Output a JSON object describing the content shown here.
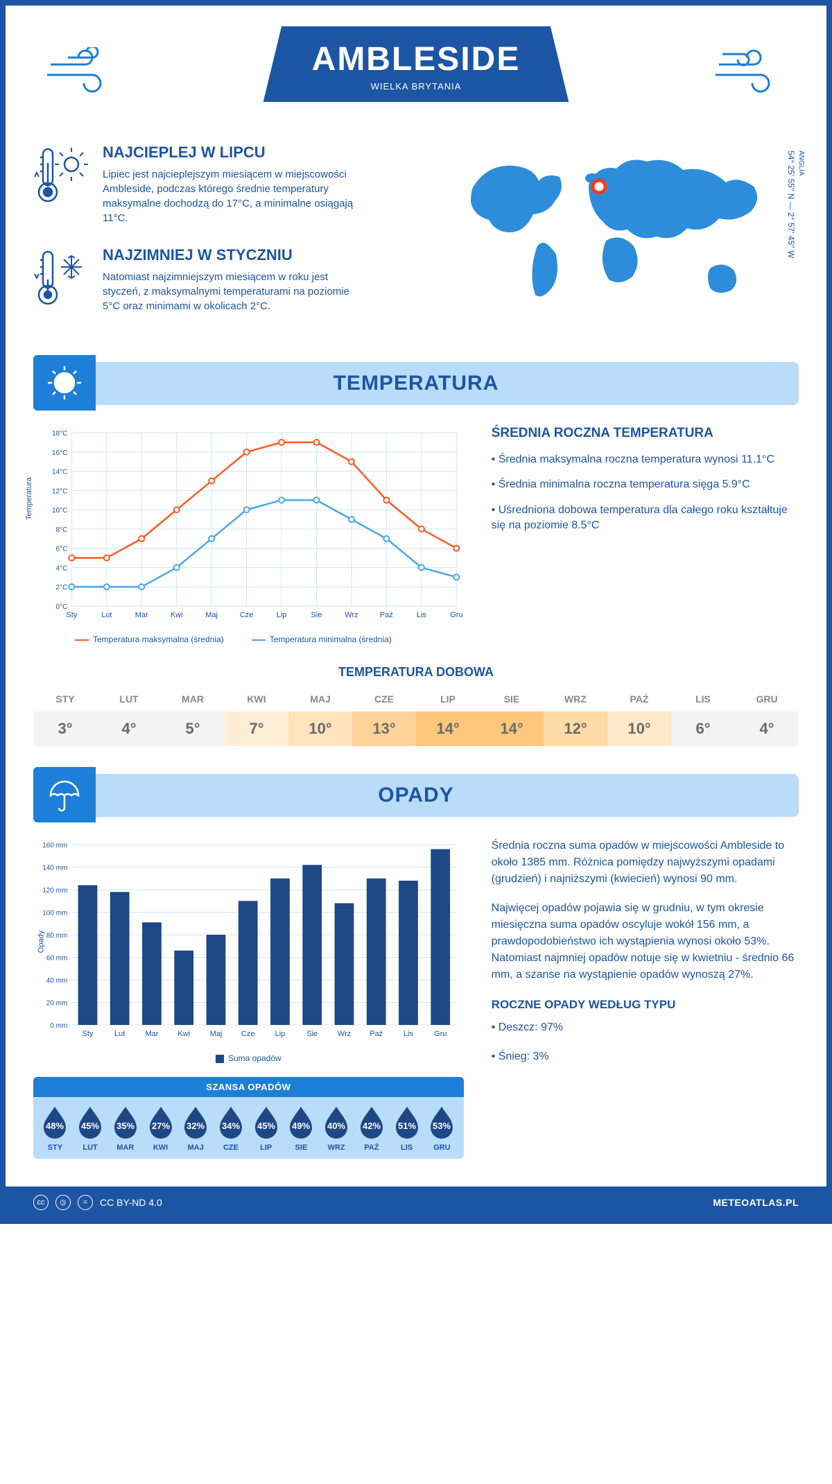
{
  "header": {
    "title": "AMBLESIDE",
    "country": "WIELKA BRYTANIA",
    "banner_bg": "#1c55a3",
    "banner_fg": "#ffffff"
  },
  "coords": {
    "lat": "54° 25' 55'' N — 2° 57' 45'' W",
    "region": "ANGLIA"
  },
  "warmest": {
    "title": "NAJCIEPLEJ W LIPCU",
    "text": "Lipiec jest najcieplejszym miesiącem w miejscowości Ambleside, podczas którego średnie temperatury maksymalne dochodzą do 17°C, a minimalne osiągają 11°C."
  },
  "coldest": {
    "title": "NAJZIMNIEJ W STYCZNIU",
    "text": "Natomiast najzimniejszym miesiącem w roku jest styczeń, z maksymalnymi temperaturami na poziomie 5°C oraz minimami w okolicach 2°C."
  },
  "temperature": {
    "section_title": "TEMPERATURA",
    "side_title": "ŚREDNIA ROCZNA TEMPERATURA",
    "bullets": [
      "• Średnia maksymalna roczna temperatura wynosi 11.1°C",
      "• Średnia minimalna roczna temperatura sięga 5.9°C",
      "• Uśredniona dobowa temperatura dla całego roku kształtuje się na poziomie 8.5°C"
    ],
    "chart": {
      "type": "line",
      "months": [
        "Sty",
        "Lut",
        "Mar",
        "Kwi",
        "Maj",
        "Cze",
        "Lip",
        "Sie",
        "Wrz",
        "Paź",
        "Lis",
        "Gru"
      ],
      "max_series": [
        5,
        5,
        7,
        10,
        13,
        16,
        17,
        17,
        15,
        11,
        8,
        6
      ],
      "min_series": [
        2,
        2,
        2,
        4,
        7,
        10,
        11,
        11,
        9,
        7,
        4,
        3
      ],
      "max_color": "#ff5a1f",
      "min_color": "#4aa8e8",
      "ylim": [
        0,
        18
      ],
      "ytick_step": 2,
      "yformat": "°C",
      "grid_color": "#cfe6f7",
      "legend_max": "Temperatura maksymalna (średnia)",
      "legend_min": "Temperatura minimalna (średnia)",
      "ylabel": "Temperatura"
    },
    "daily": {
      "title": "TEMPERATURA DOBOWA",
      "months": [
        "STY",
        "LUT",
        "MAR",
        "KWI",
        "MAJ",
        "CZE",
        "LIP",
        "SIE",
        "WRZ",
        "PAŹ",
        "LIS",
        "GRU"
      ],
      "values": [
        "3°",
        "4°",
        "5°",
        "7°",
        "10°",
        "13°",
        "14°",
        "14°",
        "12°",
        "10°",
        "6°",
        "4°"
      ],
      "bg_colors": [
        "#f4f4f4",
        "#f4f4f4",
        "#f4f4f4",
        "#ffedd7",
        "#ffe3bd",
        "#ffd39a",
        "#ffc77b",
        "#ffc77b",
        "#ffdba8",
        "#ffe9c9",
        "#f4f4f4",
        "#f4f4f4"
      ]
    }
  },
  "precip": {
    "section_title": "OPADY",
    "para1": "Średnia roczna suma opadów w miejscowości Ambleside to około 1385 mm. Różnica pomiędzy najwyższymi opadami (grudzień) i najniższymi (kwiecień) wynosi 90 mm.",
    "para2": "Najwięcej opadów pojawia się w grudniu, w tym okresie miesięczna suma opadów oscyluje wokół 156 mm, a prawdopodobieństwo ich wystąpienia wynosi około 53%. Natomiast najmniej opadów notuje się w kwietniu - średnio 66 mm, a szanse na wystąpienie opadów wynoszą 27%.",
    "type_title": "ROCZNE OPADY WEDŁUG TYPU",
    "type_bullets": [
      "• Deszcz: 97%",
      "• Śnieg: 3%"
    ],
    "chart": {
      "type": "bar",
      "months": [
        "Sty",
        "Lut",
        "Mar",
        "Kwi",
        "Maj",
        "Cze",
        "Lip",
        "Sie",
        "Wrz",
        "Paź",
        "Lis",
        "Gru"
      ],
      "values": [
        124,
        118,
        91,
        66,
        80,
        110,
        130,
        142,
        108,
        130,
        128,
        156
      ],
      "bar_color": "#1e4785",
      "ylim": [
        0,
        160
      ],
      "ytick_step": 20,
      "yformat": " mm",
      "grid_color": "#cfe6f7",
      "ylabel": "Opady",
      "legend": "Suma opadów"
    },
    "chance": {
      "title": "SZANSA OPADÓW",
      "months": [
        "STY",
        "LUT",
        "MAR",
        "KWI",
        "MAJ",
        "CZE",
        "LIP",
        "SIE",
        "WRZ",
        "PAŹ",
        "LIS",
        "GRU"
      ],
      "values": [
        "48%",
        "45%",
        "35%",
        "27%",
        "32%",
        "34%",
        "45%",
        "49%",
        "40%",
        "42%",
        "51%",
        "53%"
      ],
      "drop_fill": "#1e4785"
    }
  },
  "footer": {
    "license": "CC BY-ND 4.0",
    "site": "METEOATLAS.PL"
  }
}
